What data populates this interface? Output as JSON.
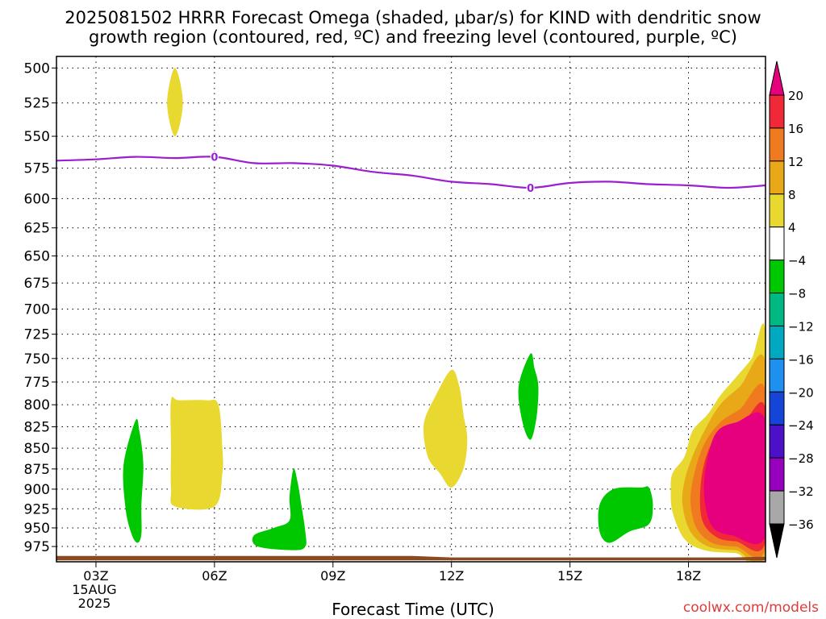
{
  "title_line1": "2025081502 HRRR Forecast Omega (shaded, μbar/s) for KIND with dendritic snow",
  "title_line2": "growth region (contoured, red, ºC) and freezing level (contoured, purple, ºC)",
  "credit": "coolwx.com/models",
  "chart_data": {
    "type": "contour",
    "xlabel": "Forecast Time (UTC)",
    "ylabel": "",
    "x_ticks": [
      {
        "hour": 3,
        "label": "03Z",
        "sub": [
          "15AUG",
          "2025"
        ]
      },
      {
        "hour": 6,
        "label": "06Z"
      },
      {
        "hour": 9,
        "label": "09Z"
      },
      {
        "hour": 12,
        "label": "12Z"
      },
      {
        "hour": 15,
        "label": "15Z"
      },
      {
        "hour": 18,
        "label": "18Z"
      }
    ],
    "xlim_hours": [
      2.0,
      19.95
    ],
    "y_ticks": [
      500,
      525,
      550,
      575,
      600,
      625,
      650,
      675,
      700,
      725,
      750,
      775,
      800,
      825,
      850,
      875,
      900,
      925,
      950,
      975
    ],
    "ylim_pressure": [
      492,
      996
    ],
    "y_scale": "log pressure",
    "grid": true,
    "freezing_level": {
      "label": "0",
      "color": "#9a1fd0",
      "points": [
        [
          2.0,
          569
        ],
        [
          3.0,
          568
        ],
        [
          4.0,
          566
        ],
        [
          5.0,
          567
        ],
        [
          6.0,
          566
        ],
        [
          7.0,
          571
        ],
        [
          8.0,
          571
        ],
        [
          9.0,
          573
        ],
        [
          10.0,
          578
        ],
        [
          11.0,
          581
        ],
        [
          12.0,
          586
        ],
        [
          13.0,
          588
        ],
        [
          14.0,
          591
        ],
        [
          15.0,
          587
        ],
        [
          16.0,
          586
        ],
        [
          17.0,
          588
        ],
        [
          18.0,
          589
        ],
        [
          19.0,
          591
        ],
        [
          19.95,
          589
        ]
      ],
      "label_positions": [
        [
          6.0,
          566
        ],
        [
          14.0,
          591
        ]
      ]
    },
    "colorbar": {
      "levels": [
        "20",
        "16",
        "12",
        "8",
        "4",
        "−4",
        "−8",
        "−12",
        "−16",
        "−20",
        "−24",
        "−28",
        "−32",
        "−36"
      ],
      "colors": [
        "#e6007e",
        "#f02838",
        "#f07a20",
        "#e8a818",
        "#e8d830",
        "#ffffff",
        "#00c800",
        "#00b882",
        "#00a8c0",
        "#1e90f0",
        "#1444d8",
        "#4c10c8",
        "#9800c0",
        "#a8a8a8",
        "#000000"
      ]
    },
    "shaded_regions": [
      {
        "omega": 6,
        "color": "#e8d830",
        "points": [
          [
            5.0,
            500
          ],
          [
            5.2,
            525
          ],
          [
            5.0,
            550
          ],
          [
            4.8,
            525
          ]
        ]
      },
      {
        "omega": 6,
        "color": "#e8d830",
        "points": [
          [
            4.9,
            795
          ],
          [
            5.1,
            795
          ],
          [
            5.8,
            795
          ],
          [
            6.1,
            800
          ],
          [
            6.2,
            850
          ],
          [
            6.2,
            880
          ],
          [
            6.0,
            922
          ],
          [
            5.0,
            922
          ],
          [
            4.9,
            900
          ],
          [
            4.9,
            850
          ]
        ]
      },
      {
        "omega": 6,
        "color": "#e8d830",
        "points": [
          [
            12.0,
            762
          ],
          [
            11.6,
            790
          ],
          [
            11.3,
            822
          ],
          [
            11.4,
            860
          ],
          [
            11.7,
            880
          ],
          [
            12.0,
            898
          ],
          [
            12.3,
            875
          ],
          [
            12.4,
            840
          ],
          [
            12.3,
            810
          ],
          [
            12.2,
            780
          ]
        ]
      },
      {
        "omega": -6,
        "color": "#00c800",
        "points": [
          [
            4.0,
            818
          ],
          [
            3.7,
            870
          ],
          [
            3.75,
            925
          ],
          [
            3.9,
            958
          ],
          [
            4.05,
            970
          ],
          [
            4.15,
            958
          ],
          [
            4.15,
            920
          ],
          [
            4.2,
            870
          ],
          [
            4.1,
            830
          ]
        ]
      },
      {
        "omega": -6,
        "color": "#00c800",
        "points": [
          [
            8.0,
            875
          ],
          [
            7.9,
            910
          ],
          [
            7.9,
            940
          ],
          [
            7.5,
            950
          ],
          [
            7.0,
            960
          ],
          [
            7.1,
            975
          ],
          [
            8.0,
            980
          ],
          [
            8.3,
            975
          ],
          [
            8.3,
            955
          ],
          [
            8.2,
            920
          ],
          [
            8.1,
            890
          ]
        ]
      },
      {
        "omega": -6,
        "color": "#00c800",
        "points": [
          [
            14.0,
            745
          ],
          [
            13.7,
            780
          ],
          [
            13.8,
            820
          ],
          [
            14.0,
            840
          ],
          [
            14.15,
            815
          ],
          [
            14.2,
            780
          ],
          [
            14.1,
            760
          ]
        ]
      },
      {
        "omega": -6,
        "color": "#00c800",
        "points": [
          [
            16.8,
            898
          ],
          [
            16.1,
            900
          ],
          [
            15.75,
            920
          ],
          [
            15.75,
            955
          ],
          [
            16.0,
            970
          ],
          [
            16.5,
            955
          ],
          [
            17.0,
            945
          ],
          [
            17.1,
            920
          ],
          [
            17.0,
            898
          ]
        ]
      },
      {
        "omega": 6,
        "color": "#e8d830",
        "points": [
          [
            19.95,
            725
          ],
          [
            19.6,
            750
          ],
          [
            19.2,
            770
          ],
          [
            18.8,
            790
          ],
          [
            18.5,
            810
          ],
          [
            18.1,
            830
          ],
          [
            17.9,
            860
          ],
          [
            17.6,
            880
          ],
          [
            17.55,
            900
          ],
          [
            17.6,
            930
          ],
          [
            17.9,
            965
          ],
          [
            18.4,
            980
          ],
          [
            19.2,
            984
          ],
          [
            19.95,
            985
          ]
        ]
      },
      {
        "omega": 10,
        "color": "#e8a818",
        "points": [
          [
            19.95,
            755
          ],
          [
            19.3,
            780
          ],
          [
            18.8,
            800
          ],
          [
            18.4,
            830
          ],
          [
            18.1,
            860
          ],
          [
            17.9,
            890
          ],
          [
            17.85,
            920
          ],
          [
            18.05,
            955
          ],
          [
            18.5,
            975
          ],
          [
            19.2,
            980
          ],
          [
            19.95,
            980
          ]
        ]
      },
      {
        "omega": 14,
        "color": "#f07a20",
        "points": [
          [
            19.95,
            785
          ],
          [
            19.3,
            805
          ],
          [
            18.8,
            820
          ],
          [
            18.4,
            845
          ],
          [
            18.15,
            880
          ],
          [
            18.05,
            915
          ],
          [
            18.2,
            950
          ],
          [
            18.6,
            970
          ],
          [
            19.2,
            975
          ],
          [
            19.95,
            975
          ]
        ]
      },
      {
        "omega": 18,
        "color": "#f02838",
        "points": [
          [
            19.95,
            805
          ],
          [
            19.4,
            818
          ],
          [
            18.8,
            830
          ],
          [
            18.45,
            860
          ],
          [
            18.3,
            900
          ],
          [
            18.35,
            940
          ],
          [
            18.7,
            962
          ],
          [
            19.2,
            968
          ],
          [
            19.95,
            968
          ]
        ]
      },
      {
        "omega": 22,
        "color": "#e6007e",
        "points": [
          [
            19.95,
            818
          ],
          [
            19.2,
            820
          ],
          [
            18.7,
            832
          ],
          [
            18.45,
            870
          ],
          [
            18.4,
            910
          ],
          [
            18.6,
            948
          ],
          [
            19.1,
            960
          ],
          [
            19.95,
            960
          ]
        ]
      }
    ],
    "surface_band": {
      "color": "#8b4a22",
      "points": [
        [
          2.0,
          988
        ],
        [
          11.0,
          988
        ],
        [
          12.0,
          990
        ],
        [
          19.1,
          990
        ],
        [
          19.95,
          989
        ],
        [
          19.95,
          994
        ],
        [
          2.0,
          994
        ]
      ]
    }
  }
}
